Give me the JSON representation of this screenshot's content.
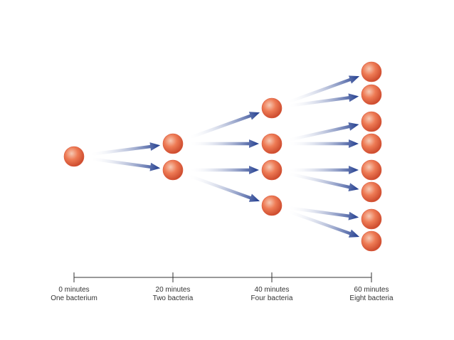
{
  "diagram": {
    "colors": {
      "cell_light": "#f6c9b4",
      "cell_mid": "#ee7b55",
      "cell_dark": "#c9462a",
      "arrow_dark": "#1f3b8e",
      "arrow_light": "#ffffff",
      "axis": "#333333"
    },
    "timeline": [
      {
        "time": "0 minutes",
        "count": "One bacterium"
      },
      {
        "time": "20 minutes",
        "count": "Two bacteria"
      },
      {
        "time": "40 minutes",
        "count": "Four bacteria"
      },
      {
        "time": "60 minutes",
        "count": "Eight bacteria"
      }
    ]
  }
}
